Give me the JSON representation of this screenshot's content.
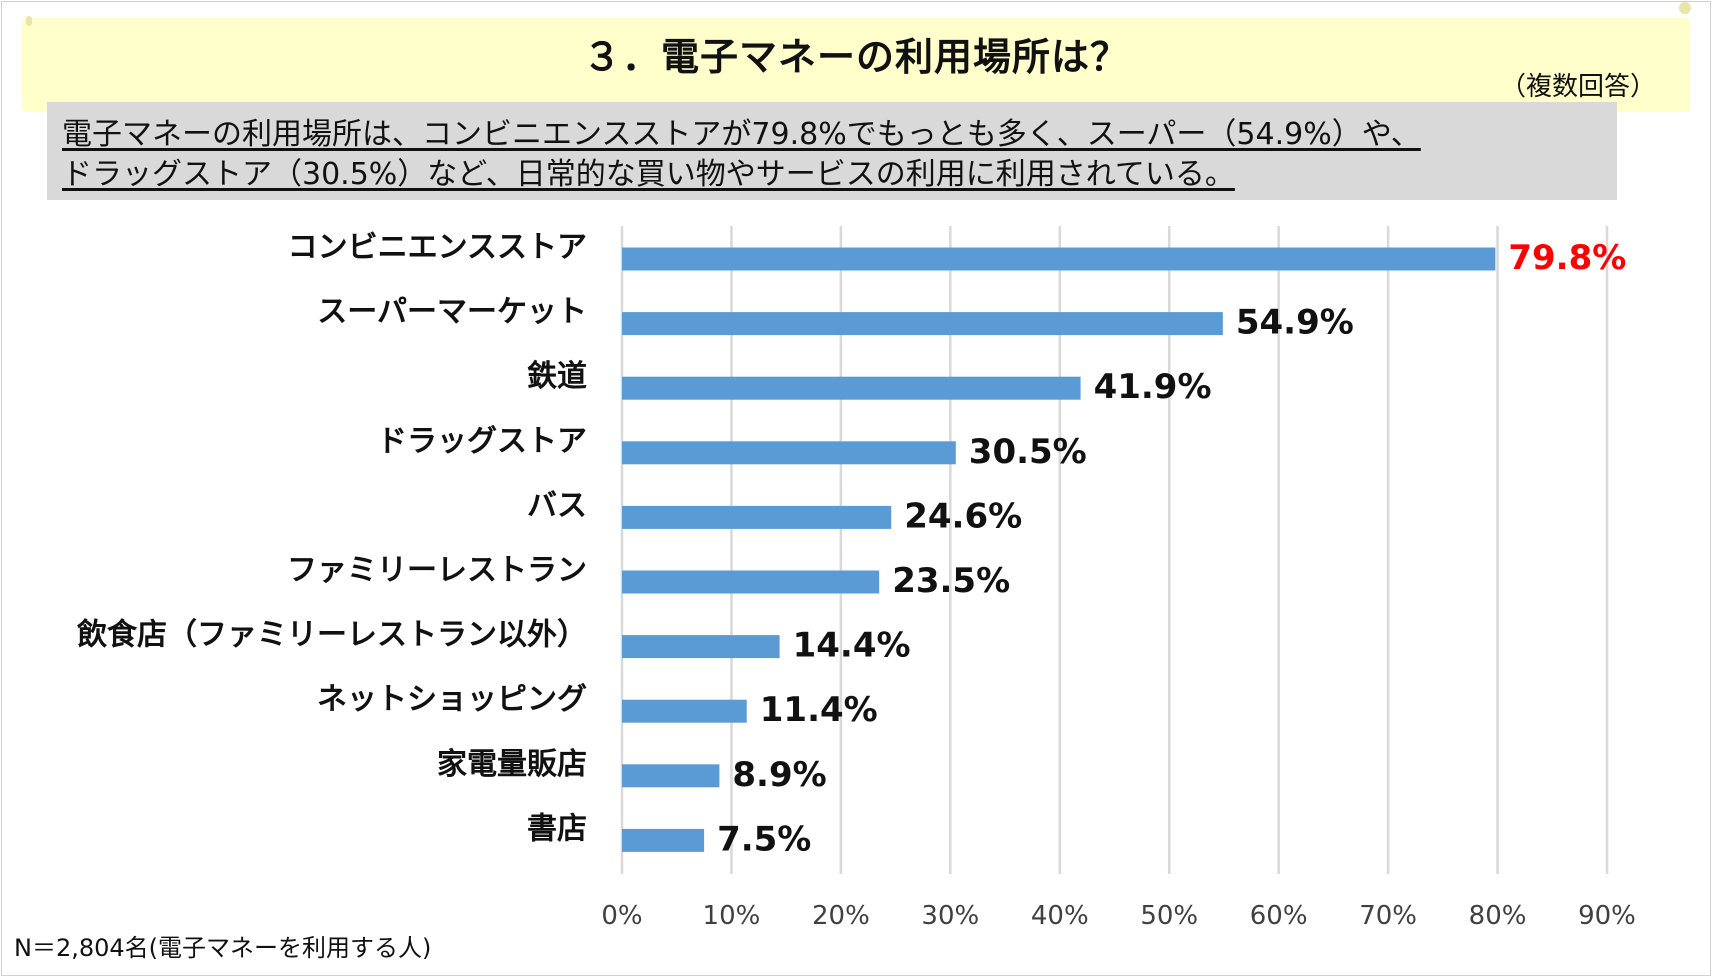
{
  "header": {
    "title": "３．電子マネーの利用場所は？",
    "note": "（複数回答）"
  },
  "summary": {
    "line1": "電子マネーの利用場所は、コンビニエンスストアが79.8%でもっとも多く、スーパー（54.9%）や、",
    "line2": "ドラッグストア（30.5%）など、日常的な買い物やサービスの利用に利用されている。"
  },
  "footer": {
    "sample": "N＝2,804名(電子マネーを利用する人)"
  },
  "colors": {
    "bar": "#5b9bd5",
    "highlight_label": "#ff0000",
    "banner": "#ffffcc",
    "summary_bg": "#d9d9d9",
    "grid": "#d9d9d9"
  },
  "chart_data": {
    "type": "bar",
    "orientation": "horizontal",
    "categories": [
      "コンビニエンスストア",
      "スーパーマーケット",
      "鉄道",
      "ドラッグストア",
      "バス",
      "ファミリーレストラン",
      "飲食店（ファミリーレストラン以外）",
      "ネットショッピング",
      "家電量販店",
      "書店"
    ],
    "values": [
      79.8,
      54.9,
      41.9,
      30.5,
      24.6,
      23.5,
      14.4,
      11.4,
      8.9,
      7.5
    ],
    "data_labels": [
      "79.8%",
      "54.9%",
      "41.9%",
      "30.5%",
      "24.6%",
      "23.5%",
      "14.4%",
      "11.4%",
      "8.9%",
      "7.5%"
    ],
    "highlight_index": 0,
    "xlim": [
      0,
      90
    ],
    "x_ticks": [
      0,
      10,
      20,
      30,
      40,
      50,
      60,
      70,
      80,
      90
    ],
    "x_tick_labels": [
      "0%",
      "10%",
      "20%",
      "30%",
      "40%",
      "50%",
      "60%",
      "70%",
      "80%",
      "90%"
    ],
    "grid": true,
    "legend": "none"
  }
}
